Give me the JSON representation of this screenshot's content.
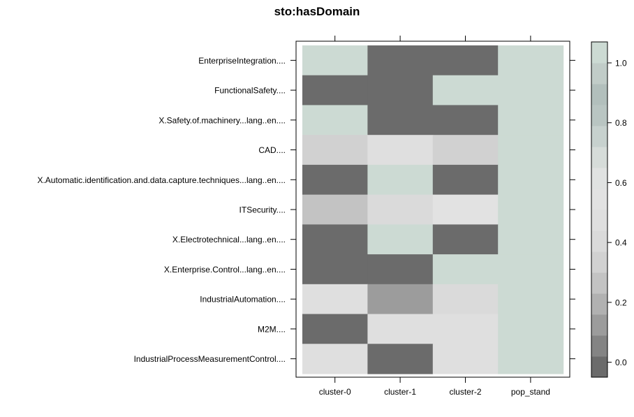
{
  "chart_data": {
    "type": "heatmap",
    "title": "sto:hasDomain",
    "xlabel": "",
    "ylabel": "",
    "x_categories": [
      "cluster-0",
      "cluster-1",
      "cluster-2",
      "pop_stand"
    ],
    "y_categories": [
      "EnterpriseIntegration....",
      "FunctionalSafety....",
      "X.Safety.of.machinery...lang..en....",
      "CAD....",
      "X.Automatic.identification.and.data.capture.techniques...lang..en....",
      "ITSecurity....",
      "X.Electrotechnical...lang..en....",
      "X.Enterprise.Control...lang..en....",
      "IndustrialAutomation....",
      "M2M....",
      "IndustrialProcessMeasurementControl...."
    ],
    "values": [
      [
        1.0,
        0.0,
        0.0,
        1.0
      ],
      [
        0.0,
        0.0,
        1.0,
        1.0
      ],
      [
        1.0,
        0.0,
        0.0,
        1.0
      ],
      [
        0.33,
        0.5,
        0.33,
        1.0
      ],
      [
        0.0,
        1.0,
        0.0,
        1.0
      ],
      [
        0.25,
        0.4,
        0.55,
        1.0
      ],
      [
        0.0,
        1.0,
        0.0,
        1.0
      ],
      [
        0.0,
        0.0,
        1.0,
        1.0
      ],
      [
        0.5,
        0.12,
        0.4,
        1.0
      ],
      [
        0.0,
        0.5,
        0.5,
        1.0
      ],
      [
        0.5,
        0.0,
        0.5,
        1.0
      ]
    ],
    "colorbar": {
      "range": [
        -0.05,
        1.07
      ],
      "ticks": [
        0.0,
        0.2,
        0.4,
        0.6,
        0.8,
        1.0
      ],
      "tick_labels": [
        "0.0",
        "0.2",
        "0.4",
        "0.6",
        "0.8",
        "1.0"
      ],
      "breaks": [
        -0.05,
        0.02,
        0.09,
        0.16,
        0.23,
        0.3,
        0.37,
        0.44,
        0.51,
        0.58,
        0.65,
        0.72,
        0.79,
        0.86,
        0.93,
        1.0,
        1.07
      ],
      "colors": [
        "#6b6b6b",
        "#848484",
        "#9c9c9c",
        "#b1b1b1",
        "#c3c3c3",
        "#d1d1d1",
        "#dadada",
        "#dfdfdf",
        "#e2e2e2",
        "#e0e2e1",
        "#d6dcd9",
        "#c7d1ce",
        "#b9c5c2",
        "#b2bfbc",
        "#c1ccc8",
        "#ccdad3"
      ]
    },
    "grid": false,
    "legend": "right"
  }
}
